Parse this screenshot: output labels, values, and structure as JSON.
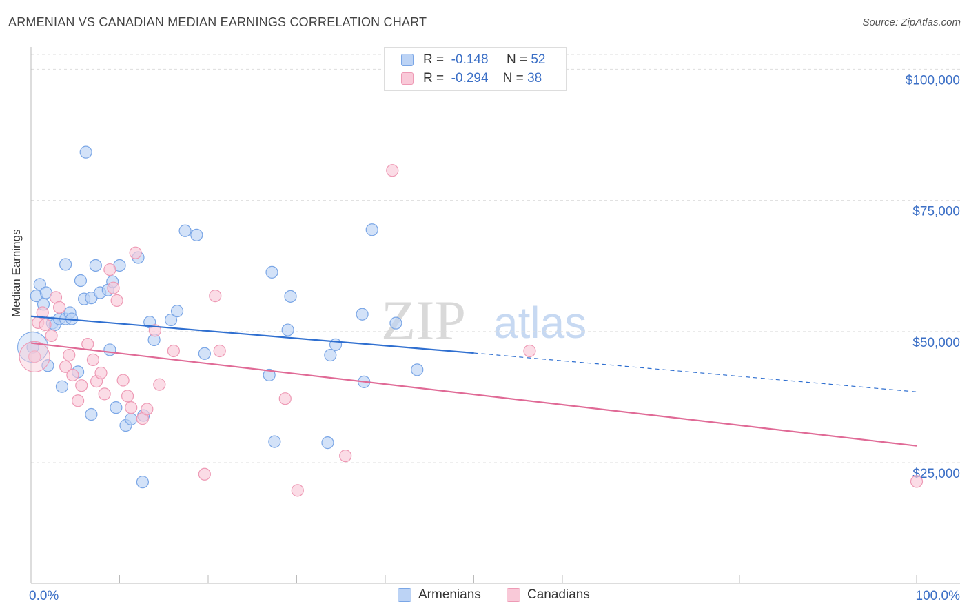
{
  "title": "ARMENIAN VS CANADIAN MEDIAN EARNINGS CORRELATION CHART",
  "source": "Source: ZipAtlas.com",
  "watermark": {
    "zip": "ZIP",
    "atlas": "atlas"
  },
  "legend": {
    "r_label": "R =",
    "n_label": "N =",
    "rows": [
      {
        "name": "Armenians",
        "r": "-0.148",
        "n": "52",
        "fill": "#bcd3f5",
        "stroke": "#7aa6e6"
      },
      {
        "name": "Canadians",
        "r": "-0.294",
        "n": "38",
        "fill": "#f9c9d8",
        "stroke": "#ee9ab5"
      }
    ]
  },
  "colors": {
    "blue_line": "#2f6fd0",
    "pink_line": "#e06a96",
    "axis_text": "#3b6fc6",
    "grid": "#dddddd"
  },
  "chart_data": {
    "type": "scatter",
    "title": "ARMENIAN VS CANADIAN MEDIAN EARNINGS CORRELATION CHART",
    "xlabel": "",
    "ylabel": "Median Earnings",
    "xlim": [
      0,
      100
    ],
    "ylim": [
      2000,
      104000
    ],
    "x_tick_labels": {
      "min": "0.0%",
      "max": "100.0%"
    },
    "y_ticks": [
      {
        "value": 25000,
        "label": "$25,000"
      },
      {
        "value": 50000,
        "label": "$50,000"
      },
      {
        "value": 75000,
        "label": "$75,000"
      },
      {
        "value": 100000,
        "label": "$100,000"
      }
    ],
    "series": [
      {
        "name": "Armenians",
        "fill": "#bcd3f5",
        "stroke": "#7aa6e6",
        "trend": {
          "x0": 0,
          "y0": 52900,
          "x1": 50,
          "y1": 45900,
          "dash_to_x": 100,
          "dash_to_y": 38500
        },
        "points": [
          [
            0.2,
            47000
          ],
          [
            0.6,
            56800
          ],
          [
            1.0,
            59000
          ],
          [
            1.4,
            55200
          ],
          [
            1.7,
            57400
          ],
          [
            1.9,
            43500
          ],
          [
            2.4,
            51600
          ],
          [
            2.7,
            51300
          ],
          [
            3.2,
            52400
          ],
          [
            3.5,
            39500
          ],
          [
            3.9,
            52400
          ],
          [
            3.9,
            62800
          ],
          [
            4.4,
            53600
          ],
          [
            4.6,
            52400
          ],
          [
            5.3,
            42300
          ],
          [
            5.6,
            59700
          ],
          [
            6.0,
            56200
          ],
          [
            6.8,
            56400
          ],
          [
            6.8,
            34200
          ],
          [
            7.3,
            62600
          ],
          [
            7.8,
            57400
          ],
          [
            8.7,
            57900
          ],
          [
            8.9,
            46500
          ],
          [
            9.2,
            59500
          ],
          [
            9.6,
            35500
          ],
          [
            10.0,
            62600
          ],
          [
            10.7,
            32100
          ],
          [
            11.3,
            33300
          ],
          [
            12.1,
            64100
          ],
          [
            12.7,
            34000
          ],
          [
            13.4,
            51800
          ],
          [
            13.9,
            48400
          ],
          [
            15.8,
            52200
          ],
          [
            16.5,
            53900
          ],
          [
            17.4,
            69200
          ],
          [
            18.7,
            68400
          ],
          [
            19.6,
            45800
          ],
          [
            26.9,
            41700
          ],
          [
            27.2,
            61300
          ],
          [
            27.5,
            29000
          ],
          [
            29.0,
            50300
          ],
          [
            29.3,
            56700
          ],
          [
            33.5,
            28800
          ],
          [
            33.8,
            45500
          ],
          [
            34.4,
            47500
          ],
          [
            37.4,
            53300
          ],
          [
            37.6,
            40400
          ],
          [
            38.5,
            69400
          ],
          [
            41.2,
            51600
          ],
          [
            43.6,
            42700
          ],
          [
            6.2,
            84200
          ],
          [
            12.6,
            21300
          ]
        ],
        "big": [
          0.2,
          47000
        ]
      },
      {
        "name": "Canadians",
        "fill": "#f9c9d8",
        "stroke": "#ee9ab5",
        "trend": {
          "x0": 0,
          "y0": 47800,
          "x1": 100,
          "y1": 28200
        },
        "points": [
          [
            0.4,
            45200
          ],
          [
            0.8,
            51700
          ],
          [
            1.3,
            53600
          ],
          [
            1.6,
            51300
          ],
          [
            2.3,
            49200
          ],
          [
            2.8,
            56500
          ],
          [
            3.2,
            54600
          ],
          [
            3.9,
            43300
          ],
          [
            4.3,
            45500
          ],
          [
            4.7,
            41700
          ],
          [
            5.3,
            36800
          ],
          [
            5.7,
            39700
          ],
          [
            6.4,
            47600
          ],
          [
            7.0,
            44600
          ],
          [
            7.4,
            40500
          ],
          [
            7.9,
            42100
          ],
          [
            8.3,
            38100
          ],
          [
            8.9,
            61800
          ],
          [
            9.3,
            58300
          ],
          [
            9.7,
            55900
          ],
          [
            10.4,
            40700
          ],
          [
            10.9,
            37700
          ],
          [
            11.3,
            35500
          ],
          [
            11.8,
            65000
          ],
          [
            12.6,
            33400
          ],
          [
            13.1,
            35200
          ],
          [
            14.0,
            50200
          ],
          [
            14.5,
            39900
          ],
          [
            16.1,
            46300
          ],
          [
            19.6,
            22800
          ],
          [
            20.8,
            56800
          ],
          [
            21.3,
            46300
          ],
          [
            28.7,
            37200
          ],
          [
            30.1,
            19700
          ],
          [
            35.5,
            26300
          ],
          [
            40.8,
            80700
          ],
          [
            56.3,
            46300
          ],
          [
            100.0,
            21400
          ]
        ],
        "big": [
          0.4,
          45200
        ]
      }
    ]
  }
}
